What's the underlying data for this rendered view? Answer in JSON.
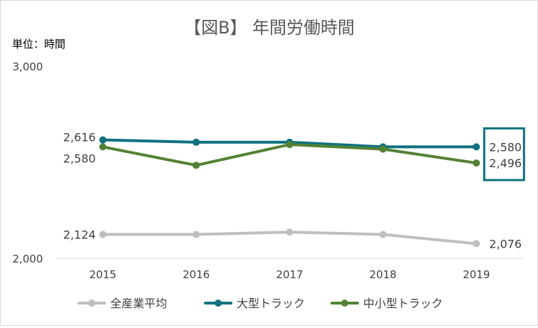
{
  "chart_data": {
    "type": "line",
    "title": "【図B】 年間労働時間",
    "ylabel": "単位：時間",
    "ylim": [
      2000,
      3000
    ],
    "y_ticks": [
      {
        "value": 2000,
        "label": "2,000"
      },
      {
        "value": 3000,
        "label": "3,000"
      }
    ],
    "categories": [
      "2015",
      "2016",
      "2017",
      "2018",
      "2019"
    ],
    "series": [
      {
        "name": "全産業平均",
        "color": "#bfbfbf",
        "values": [
          2124,
          2124,
          2136,
          2124,
          2076
        ],
        "labels": {
          "0": "2,124",
          "4": "2,076"
        }
      },
      {
        "name": "大型トラック",
        "color": "#10717f",
        "values": [
          2616,
          2604,
          2604,
          2580,
          2580
        ],
        "labels": {
          "0": "2,616",
          "4": "2,580"
        }
      },
      {
        "name": "中小型トラック",
        "color": "#548235",
        "values": [
          2580,
          2484,
          2592,
          2568,
          2496
        ],
        "labels": {
          "0": "2,580",
          "4": "2,496"
        }
      }
    ],
    "highlight": {
      "category": "2019",
      "series": [
        "大型トラック",
        "中小型トラック"
      ],
      "color": "#10717f"
    },
    "grid": false,
    "legend": "bottom"
  }
}
